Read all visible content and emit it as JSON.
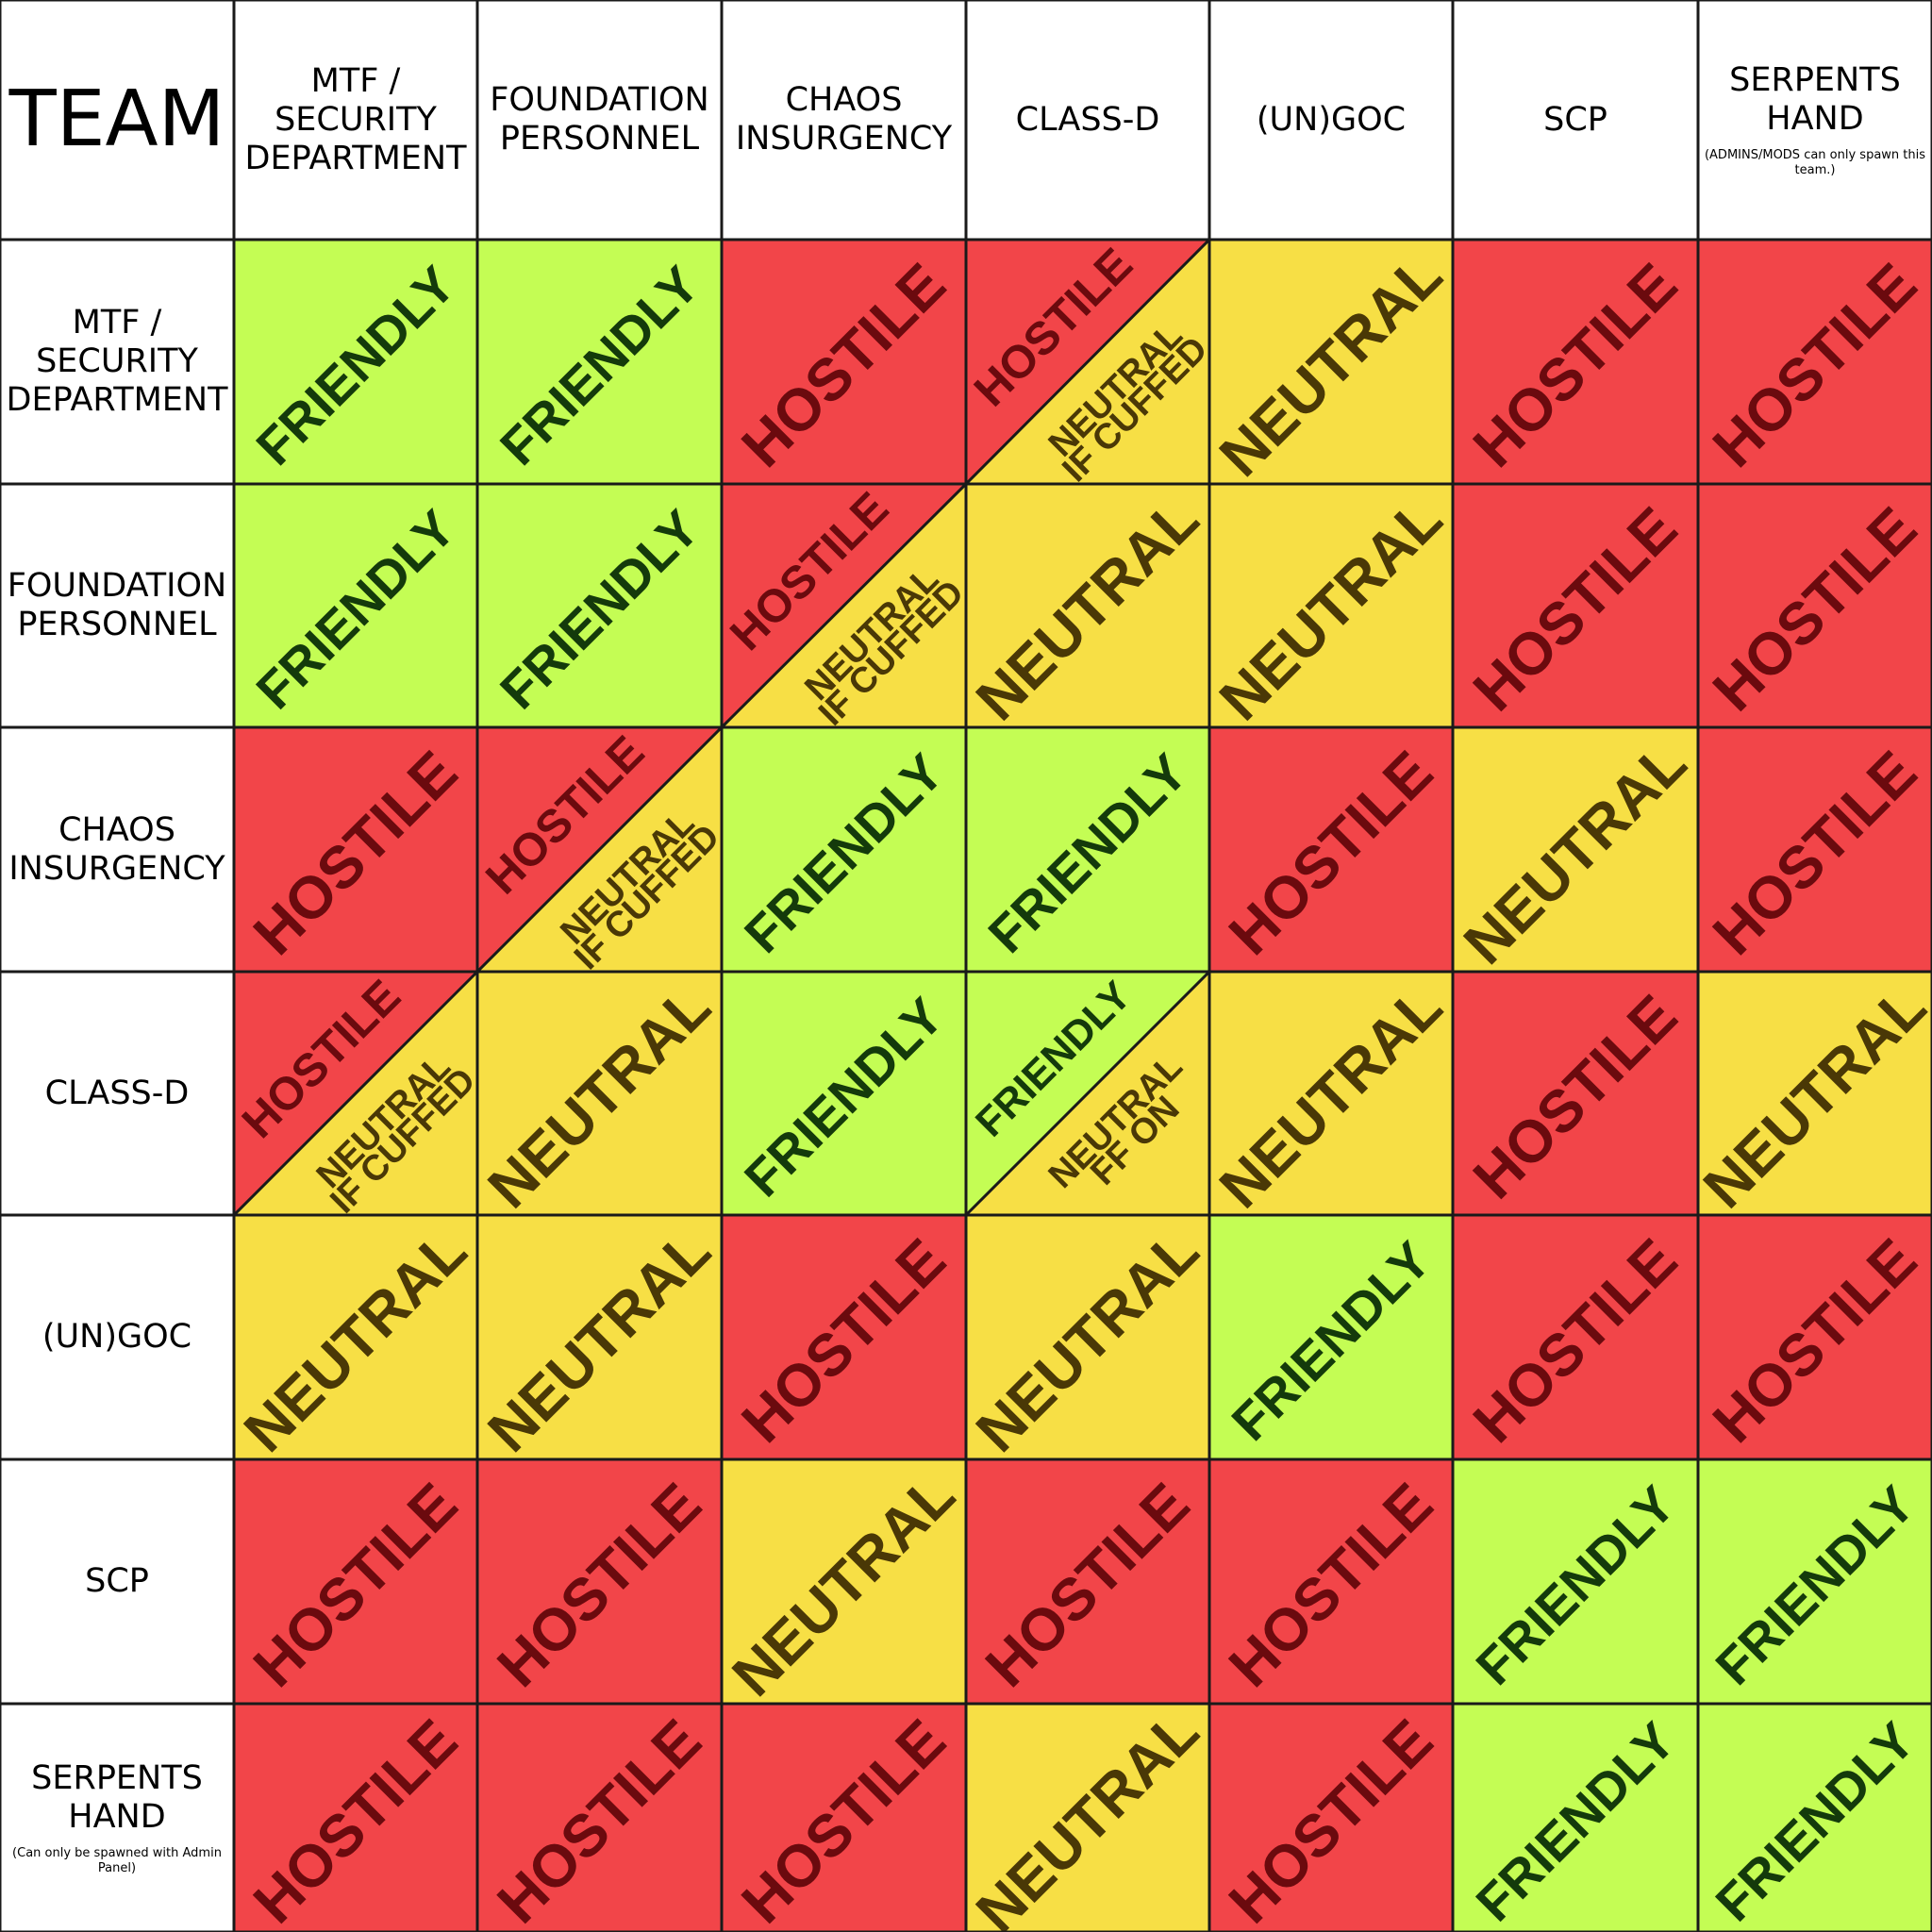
{
  "corner_label": "TEAM",
  "colors": {
    "friendly": "#c4fd54",
    "hostile": "#f24549",
    "neutral": "#f7df45",
    "friendly_text": "#143a0b",
    "hostile_text": "#6b0a0e",
    "neutral_text": "#4a3806",
    "grid_line": "#1a1a1a"
  },
  "columns": [
    {
      "label": "MTF /\nSECURITY\nDEPARTMENT",
      "note": ""
    },
    {
      "label": "FOUNDATION\nPERSONNEL",
      "note": ""
    },
    {
      "label": "CHAOS\nINSURGENCY",
      "note": ""
    },
    {
      "label": "CLASS-D",
      "note": ""
    },
    {
      "label": "(UN)GOC",
      "note": ""
    },
    {
      "label": "SCP",
      "note": ""
    },
    {
      "label": "SERPENTS\nHAND",
      "note": "(ADMINS/MODS can only spawn this team.)"
    }
  ],
  "rows": [
    {
      "label": "MTF /\nSECURITY\nDEPARTMENT",
      "note": ""
    },
    {
      "label": "FOUNDATION\nPERSONNEL",
      "note": ""
    },
    {
      "label": "CHAOS\nINSURGENCY",
      "note": ""
    },
    {
      "label": "CLASS-D",
      "note": ""
    },
    {
      "label": "(UN)GOC",
      "note": ""
    },
    {
      "label": "SCP",
      "note": ""
    },
    {
      "label": "SERPENTS\nHAND",
      "note": "(Can only be spawned with Admin Panel)"
    }
  ],
  "chart_data": {
    "type": "table",
    "title": "",
    "legend": {
      "friendly": "FRIENDLY",
      "hostile": "HOSTILE",
      "neutral": "NEUTRAL"
    },
    "cells": [
      [
        {
          "status": "friendly"
        },
        {
          "status": "friendly"
        },
        {
          "status": "hostile"
        },
        {
          "status": "split",
          "upper": "hostile",
          "lower": "neutral",
          "lower_text": [
            "NEUTRAL",
            "IF CUFFED"
          ]
        },
        {
          "status": "neutral"
        },
        {
          "status": "hostile"
        },
        {
          "status": "hostile"
        }
      ],
      [
        {
          "status": "friendly"
        },
        {
          "status": "friendly"
        },
        {
          "status": "split",
          "upper": "hostile",
          "lower": "neutral",
          "lower_text": [
            "NEUTRAL",
            "IF CUFFED"
          ]
        },
        {
          "status": "neutral"
        },
        {
          "status": "neutral"
        },
        {
          "status": "hostile"
        },
        {
          "status": "hostile"
        }
      ],
      [
        {
          "status": "hostile"
        },
        {
          "status": "split",
          "upper": "hostile",
          "lower": "neutral",
          "lower_text": [
            "NEUTRAL",
            "IF CUFFED"
          ]
        },
        {
          "status": "friendly"
        },
        {
          "status": "friendly"
        },
        {
          "status": "hostile"
        },
        {
          "status": "neutral"
        },
        {
          "status": "hostile"
        }
      ],
      [
        {
          "status": "split",
          "upper": "hostile",
          "lower": "neutral",
          "lower_text": [
            "NEUTRAL",
            "IF CUFFED"
          ]
        },
        {
          "status": "neutral"
        },
        {
          "status": "friendly"
        },
        {
          "status": "split",
          "upper": "friendly",
          "lower": "neutral",
          "lower_text": [
            "NEUTRAL",
            "FF ON"
          ]
        },
        {
          "status": "neutral"
        },
        {
          "status": "hostile"
        },
        {
          "status": "neutral"
        }
      ],
      [
        {
          "status": "neutral"
        },
        {
          "status": "neutral"
        },
        {
          "status": "hostile"
        },
        {
          "status": "neutral"
        },
        {
          "status": "friendly"
        },
        {
          "status": "hostile"
        },
        {
          "status": "hostile"
        }
      ],
      [
        {
          "status": "hostile"
        },
        {
          "status": "hostile"
        },
        {
          "status": "neutral"
        },
        {
          "status": "hostile"
        },
        {
          "status": "hostile"
        },
        {
          "status": "friendly"
        },
        {
          "status": "friendly"
        }
      ],
      [
        {
          "status": "hostile"
        },
        {
          "status": "hostile"
        },
        {
          "status": "hostile"
        },
        {
          "status": "neutral"
        },
        {
          "status": "hostile"
        },
        {
          "status": "friendly"
        },
        {
          "status": "friendly"
        }
      ]
    ]
  }
}
